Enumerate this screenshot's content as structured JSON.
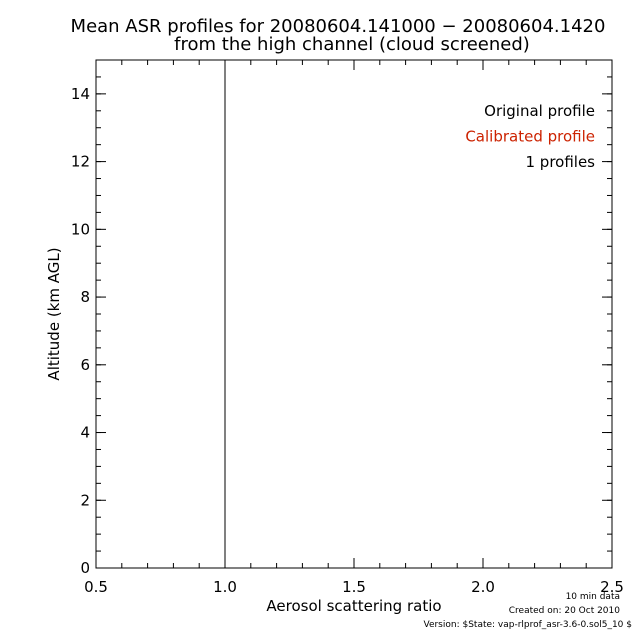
{
  "chart_data": {
    "type": "line",
    "title": "Mean ASR profiles for 20080604.141000 − 20080604.1420",
    "subtitle": "from the high channel (cloud screened)",
    "xlabel": "Aerosol scattering ratio",
    "ylabel": "Altitude (km AGL)",
    "xlim": [
      0.5,
      2.5
    ],
    "ylim": [
      0,
      15
    ],
    "x_ticks": [
      0.5,
      1.0,
      1.5,
      2.0,
      2.5
    ],
    "x_tick_labels": [
      "0.5",
      "1.0",
      "1.5",
      "2.0",
      "2.5"
    ],
    "y_ticks": [
      0,
      2,
      4,
      6,
      8,
      10,
      12,
      14
    ],
    "y_tick_labels": [
      "0",
      "2",
      "4",
      "6",
      "8",
      "10",
      "12",
      "14"
    ],
    "grid": false,
    "legend_position": "top-right",
    "legend": [
      {
        "label": "Original profile",
        "color": "#000000"
      },
      {
        "label": "Calibrated profile",
        "color": "#cc2200"
      },
      {
        "label": "1 profiles",
        "color": "#000000"
      }
    ],
    "reference_line": {
      "x": 1.0,
      "y": [
        0,
        15
      ],
      "color": "#000000"
    },
    "series": []
  },
  "footer": {
    "line1": "10 min data",
    "line2": "Created on: 20 Oct 2010",
    "line3": "Version: $State: vap-rlprof_asr-3.6-0.sol5_10 $"
  }
}
